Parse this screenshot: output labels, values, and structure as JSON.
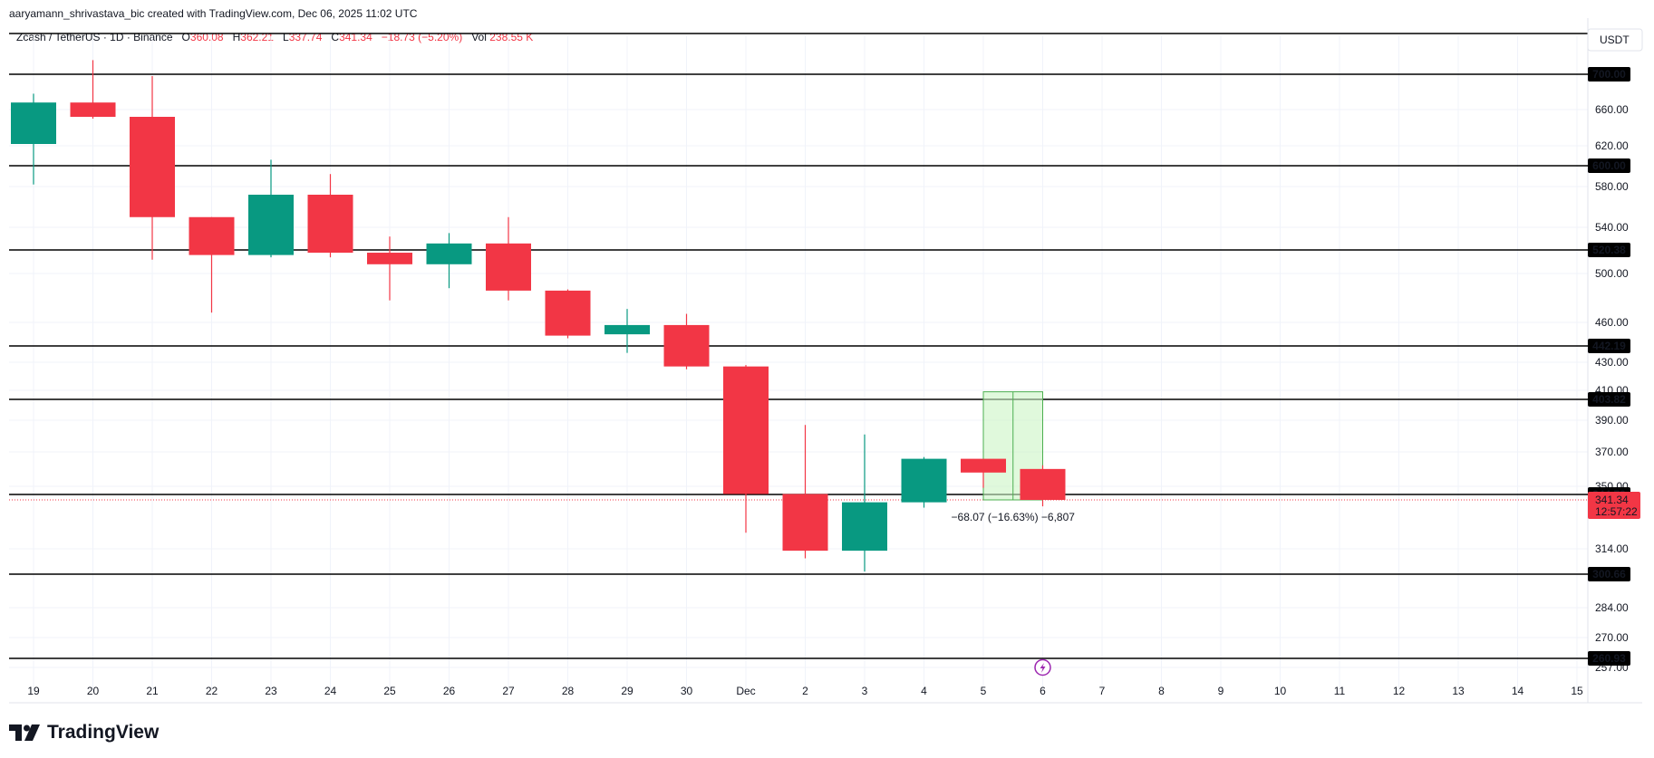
{
  "header": {
    "attribution": "aaryamann_shrivastava_bic created with TradingView.com, Dec 06, 2025 11:02 UTC"
  },
  "legend": {
    "symbol": "Zcash / TetherUS · 1D · Binance",
    "o_label": "O",
    "o_value": "360.08",
    "h_label": "H",
    "h_value": "362.21",
    "l_label": "L",
    "l_value": "337.74",
    "c_label": "C",
    "c_value": "341.34",
    "change": "−18.73 (−5.20%)",
    "vol_label": "Vol",
    "vol_value": "238.55 K"
  },
  "logo": {
    "text": "TradingView"
  },
  "colors": {
    "up": "#089981",
    "down": "#f23645",
    "grid": "#f0f3fa",
    "level_line": "#000000",
    "measure_fill": "#ccf5c4",
    "measure_border": "#4caf50",
    "price_tag": "#f23645",
    "marker": "#9c27b0"
  },
  "icons": {
    "marker": "lightning-icon"
  },
  "chart_data": {
    "type": "candlestick",
    "currency_label": "USDT",
    "y_ticks": [
      "660.00",
      "620.00",
      "580.00",
      "540.00",
      "500.00",
      "460.00",
      "430.00",
      "410.00",
      "390.00",
      "370.00",
      "350.00",
      "314.00",
      "284.00",
      "270.00",
      "257.00"
    ],
    "x_labels": [
      "19",
      "20",
      "21",
      "22",
      "23",
      "24",
      "25",
      "26",
      "27",
      "28",
      "29",
      "30",
      "Dec",
      "2",
      "3",
      "4",
      "5",
      "6",
      "7",
      "8",
      "9",
      "10",
      "11",
      "12",
      "13",
      "14",
      "15"
    ],
    "candles": [
      {
        "o": 622,
        "h": 678,
        "l": 582,
        "c": 668
      },
      {
        "o": 668,
        "h": 716,
        "l": 650,
        "c": 652
      },
      {
        "o": 652,
        "h": 698,
        "l": 512,
        "c": 550
      },
      {
        "o": 550,
        "h": 550,
        "l": 468,
        "c": 516
      },
      {
        "o": 516,
        "h": 606,
        "l": 514,
        "c": 572
      },
      {
        "o": 572,
        "h": 592,
        "l": 514,
        "c": 518
      },
      {
        "o": 518,
        "h": 532,
        "l": 478,
        "c": 508
      },
      {
        "o": 508,
        "h": 535,
        "l": 488,
        "c": 526
      },
      {
        "o": 526,
        "h": 550,
        "l": 478,
        "c": 486
      },
      {
        "o": 486,
        "h": 487,
        "l": 448,
        "c": 450
      },
      {
        "o": 451,
        "h": 471,
        "l": 437,
        "c": 458
      },
      {
        "o": 458,
        "h": 467,
        "l": 425,
        "c": 427
      },
      {
        "o": 427,
        "h": 428,
        "l": 323,
        "c": 345
      },
      {
        "o": 345,
        "h": 387,
        "l": 309,
        "c": 313
      },
      {
        "o": 313,
        "h": 381,
        "l": 302,
        "c": 340
      },
      {
        "o": 340,
        "h": 367,
        "l": 337,
        "c": 366
      },
      {
        "o": 366,
        "h": 366,
        "l": 349,
        "c": 358
      },
      {
        "o": 360.08,
        "h": 362.21,
        "l": 337.74,
        "c": 341.34
      }
    ],
    "levels": [
      "700.00",
      "600.00",
      "520.38",
      "442.19",
      "403.82",
      "344.70",
      "300.66",
      "260.93"
    ],
    "last_price": "341.34",
    "countdown": "12:57:22",
    "measure": {
      "from_index": 16,
      "to_index": 17,
      "top": 409,
      "bottom": 341.34,
      "label": "−68.07 (−16.63%) −6,807"
    }
  }
}
